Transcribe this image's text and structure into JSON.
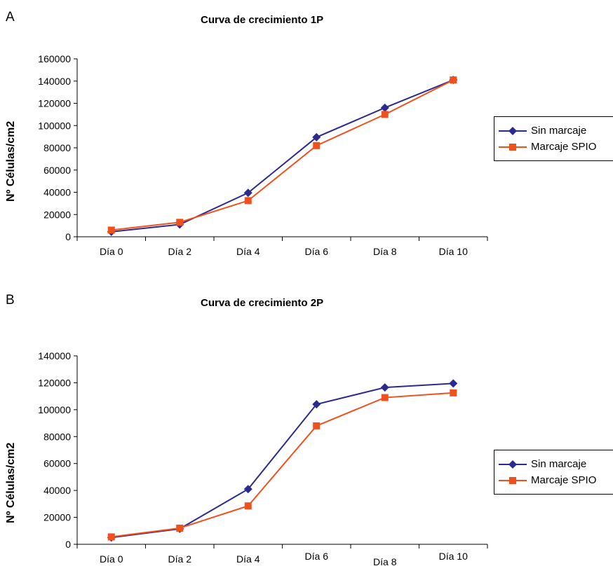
{
  "colors": {
    "series1": "#2b2b8f",
    "series2": "#f0501e"
  },
  "chart_data": [
    {
      "panel": "A",
      "type": "line",
      "title": "Curva de crecimiento 1P",
      "ylabel": "Nº Células/cm2",
      "xlabel": "",
      "categories": [
        "Día 0",
        "Día 2",
        "Día 4",
        "Día 6",
        "Día 8",
        "Día 10"
      ],
      "yticks": [
        "0",
        "20000",
        "40000",
        "60000",
        "80000",
        "100000",
        "120000",
        "140000",
        "160000"
      ],
      "ylim": [
        0,
        160000
      ],
      "legend": "right",
      "grid": false,
      "series": [
        {
          "name": "Sin marcaje",
          "marker": "diamond",
          "values": [
            4500,
            11000,
            39500,
            89500,
            116000,
            141000
          ]
        },
        {
          "name": "Marcaje SPIO",
          "marker": "square",
          "values": [
            6000,
            13000,
            32500,
            82000,
            110000,
            141000
          ]
        }
      ]
    },
    {
      "panel": "B",
      "type": "line",
      "title": "Curva de crecimiento 2P",
      "ylabel": "Nº Células/cm2",
      "xlabel": "",
      "categories": [
        "Día 0",
        "Día 2",
        "Día 4",
        "Día 6",
        "Día 8",
        "Día 10"
      ],
      "yticks": [
        "0",
        "20000",
        "40000",
        "60000",
        "80000",
        "100000",
        "120000",
        "140000"
      ],
      "ylim": [
        0,
        140000
      ],
      "legend": "right",
      "grid": false,
      "series": [
        {
          "name": "Sin marcaje",
          "marker": "diamond",
          "values": [
            5000,
            11500,
            41000,
            104000,
            116500,
            119500
          ]
        },
        {
          "name": "Marcaje SPIO",
          "marker": "square",
          "values": [
            5500,
            12000,
            28500,
            88000,
            109000,
            112500
          ]
        }
      ]
    }
  ]
}
